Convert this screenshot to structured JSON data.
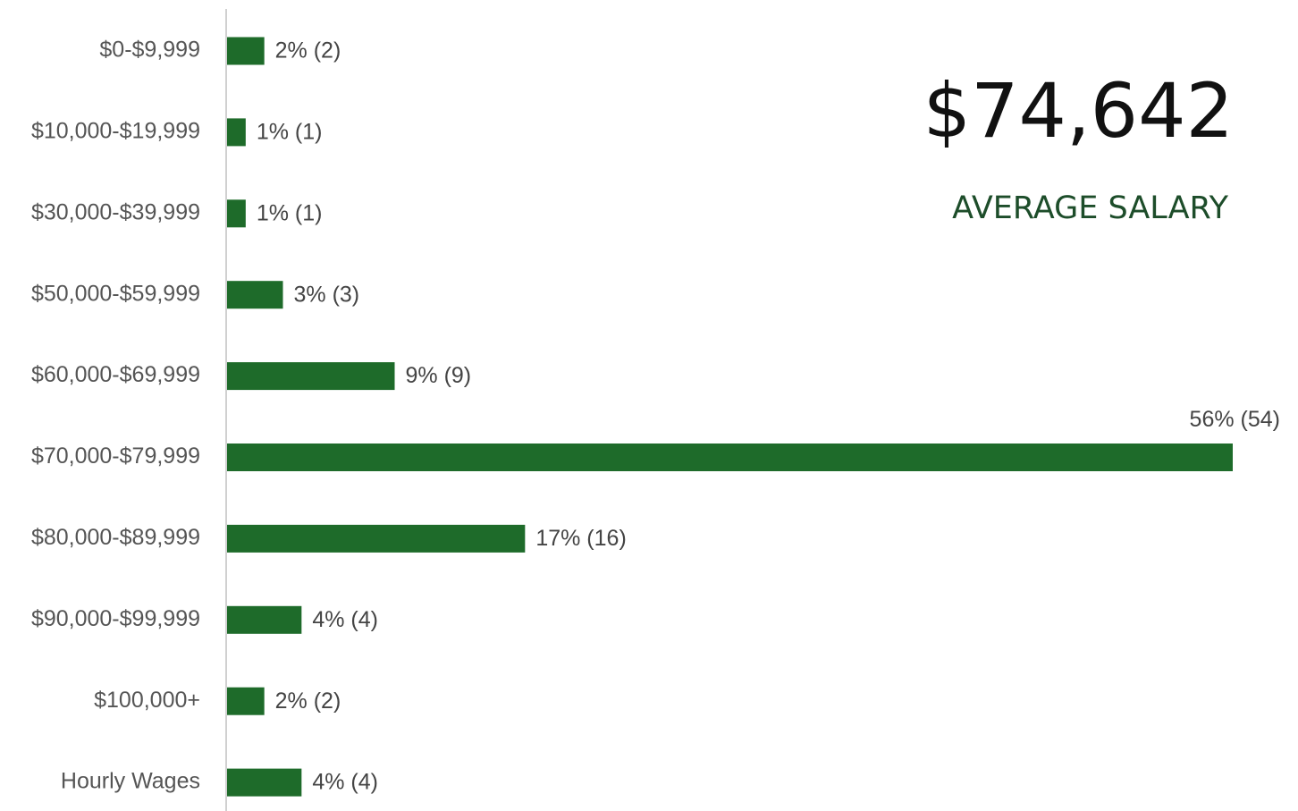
{
  "chart_data": {
    "type": "bar",
    "orientation": "horizontal",
    "categories": [
      "$0-$9,999",
      "$10,000-$19,999",
      "$30,000-$39,999",
      "$50,000-$59,999",
      "$60,000-$69,999",
      "$70,000-$79,999",
      "$80,000-$89,999",
      "$90,000-$99,999",
      "$100,000+",
      "Hourly Wages"
    ],
    "values": [
      2,
      1,
      1,
      3,
      9,
      54,
      16,
      4,
      2,
      4
    ],
    "value_labels": [
      "2% (2)",
      "1% (1)",
      "1% (1)",
      "3% (3)",
      "9% (9)",
      "56% (54)",
      "17% (16)",
      "4% (4)",
      "2% (2)",
      "4% (4)"
    ],
    "color": "#1e6b2a",
    "annotations": [
      "$74,642",
      "AVERAGE SALARY"
    ]
  }
}
